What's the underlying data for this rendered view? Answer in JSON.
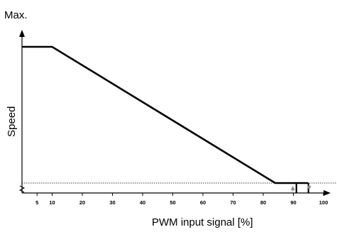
{
  "chart_data": {
    "type": "line",
    "max_label": "Max.",
    "xlabel": "PWM input signal [%]",
    "ylabel": "Speed",
    "xlim": [
      0,
      105
    ],
    "x_ticks": [
      5,
      10,
      20,
      30,
      40,
      50,
      60,
      70,
      80,
      90,
      100
    ],
    "series": [
      {
        "points": [
          {
            "x": 0,
            "y": 1.0
          },
          {
            "x": 10,
            "y": 1.0
          },
          {
            "x": 84,
            "y": 0.0
          },
          {
            "x": 95,
            "y": 0.0
          }
        ]
      }
    ],
    "min_speed_level": 0.0,
    "hysteresis": {
      "x_on": 91,
      "x_off": 95,
      "on_arrow": "up",
      "off_arrow": "down"
    },
    "axis_break_symbol": "y-axis break",
    "colors": {
      "line": "#000000",
      "axis": "#000000",
      "hysteresis_arrow": "#8c8c8c"
    }
  }
}
